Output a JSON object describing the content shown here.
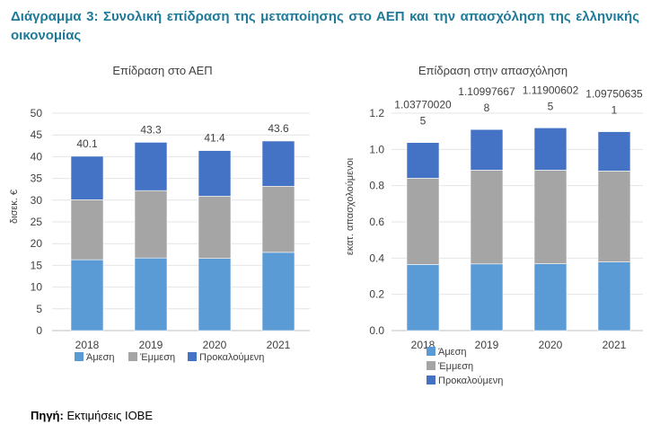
{
  "page": {
    "title": "Διάγραμμα 3: Συνολική επίδραση της μεταποίησης στο ΑΕΠ και την απασχόληση της ελληνικής οικονομίας",
    "source_label": "Πηγή:",
    "source_text": " Εκτιμήσεις ΙΟΒΕ"
  },
  "chart_data": [
    {
      "type": "bar",
      "stacked": true,
      "title": "Επίδραση στο ΑΕΠ",
      "xlabel": "",
      "ylabel": "δισεκ. €",
      "ylim": [
        0,
        50
      ],
      "yticks": [
        "0",
        "5",
        "10",
        "15",
        "20",
        "25",
        "30",
        "35",
        "40",
        "45",
        "50"
      ],
      "categories": [
        "2018",
        "2019",
        "2020",
        "2021"
      ],
      "series": [
        {
          "name": "Άμεση",
          "color": "#5b9bd5",
          "values": [
            16.3,
            16.7,
            16.6,
            18.0
          ]
        },
        {
          "name": "Έμμεση",
          "color": "#a5a5a5",
          "values": [
            13.8,
            15.5,
            14.3,
            15.2
          ]
        },
        {
          "name": "Προκαλούμενη",
          "color": "#4472c4",
          "values": [
            10.0,
            11.1,
            10.5,
            10.4
          ]
        }
      ],
      "totals": [
        "40.1",
        "43.3",
        "41.4",
        "43.6"
      ],
      "legend_position": "bottom"
    },
    {
      "type": "bar",
      "stacked": true,
      "title": "Επίδραση στην απασχόληση",
      "xlabel": "",
      "ylabel": "εκατ. απασχολούμενοι",
      "ylim": [
        0,
        1.2
      ],
      "yticks": [
        "0.0",
        "0.2",
        "0.4",
        "0.6",
        "0.8",
        "1.0",
        "1.2"
      ],
      "categories": [
        "2018",
        "2019",
        "2020",
        "2021"
      ],
      "series": [
        {
          "name": "Άμεση",
          "color": "#5b9bd5",
          "values": [
            0.365,
            0.368,
            0.369,
            0.379
          ]
        },
        {
          "name": "Έμμεση",
          "color": "#a5a5a5",
          "values": [
            0.476,
            0.518,
            0.517,
            0.502
          ]
        },
        {
          "name": "Προκαλούμενη",
          "color": "#4472c4",
          "values": [
            0.197,
            0.224,
            0.233,
            0.217
          ]
        }
      ],
      "totals": [
        [
          "1.03770020",
          "5"
        ],
        [
          "1.10997667",
          "8"
        ],
        [
          "1.11900602",
          "5"
        ],
        [
          "1.09750635",
          "1"
        ]
      ],
      "legend_position": "bottom"
    }
  ]
}
